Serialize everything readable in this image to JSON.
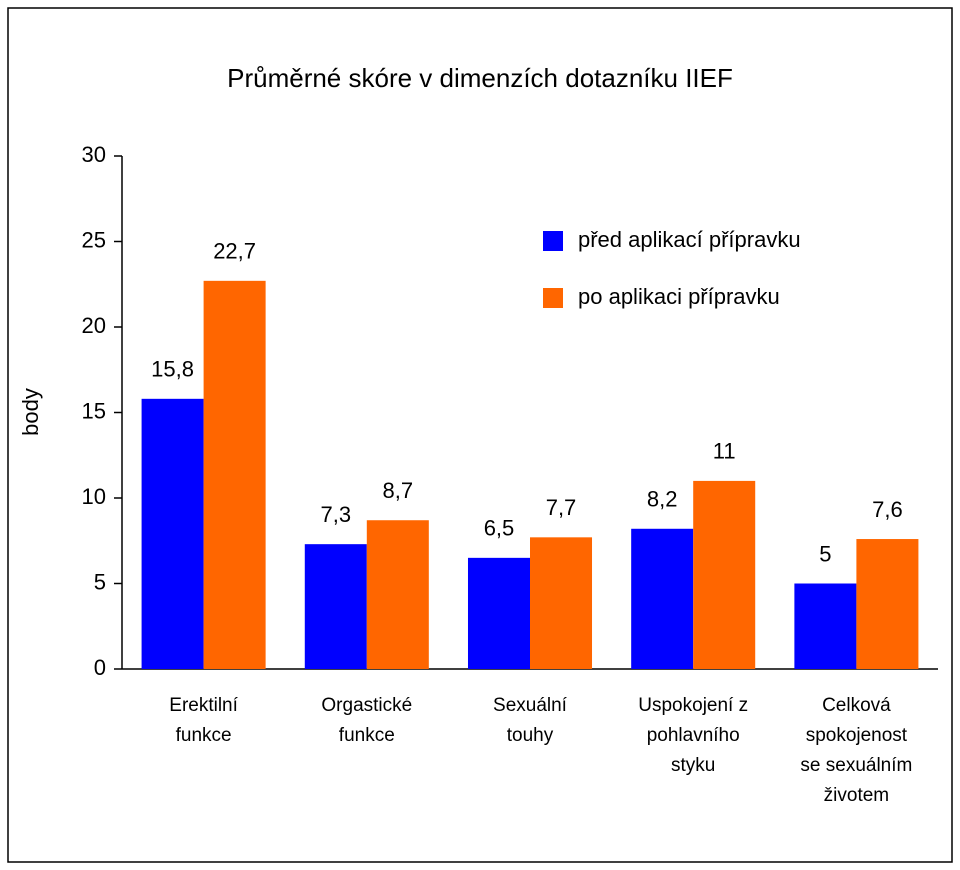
{
  "chart_data": {
    "type": "bar",
    "title": "Průměrné skóre v dimenzích dotazníku IIEF",
    "y_label": "body",
    "categories": [
      "Erektilní\nfunkce",
      "Orgastické\nfunkce",
      "Sexuální\ntouhy",
      "Uspokojení z\npohlavního\nstyku",
      "Celková\nspokojenost\nse sexuálním\nživotem"
    ],
    "series": [
      {
        "name": "před aplikací přípravku",
        "color": "#0000ff",
        "values": [
          15.8,
          7.3,
          6.5,
          8.2,
          5
        ],
        "value_labels": [
          "15,8",
          "7,3",
          "6,5",
          "8,2",
          "5"
        ]
      },
      {
        "name": "po aplikaci přípravku",
        "color": "#ff6600",
        "values": [
          22.7,
          8.7,
          7.7,
          11,
          7.6
        ],
        "value_labels": [
          "22,7",
          "8,7",
          "7,7",
          "11",
          "7,6"
        ]
      }
    ],
    "ylim": [
      0,
      30
    ],
    "yticks": [
      0,
      5,
      10,
      15,
      20,
      25,
      30
    ],
    "grid": false,
    "legend": "upper right"
  }
}
